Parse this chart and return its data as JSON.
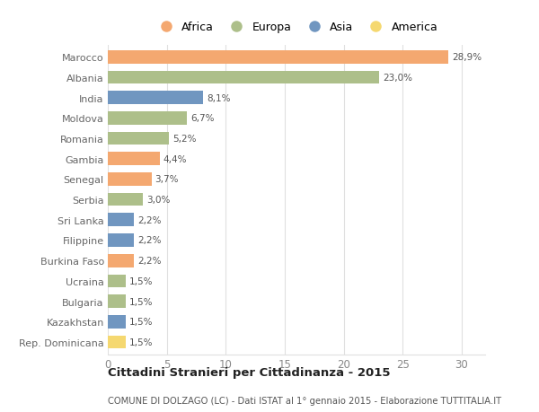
{
  "countries": [
    "Marocco",
    "Albania",
    "India",
    "Moldova",
    "Romania",
    "Gambia",
    "Senegal",
    "Serbia",
    "Sri Lanka",
    "Filippine",
    "Burkina Faso",
    "Ucraina",
    "Bulgaria",
    "Kazakhstan",
    "Rep. Dominicana"
  ],
  "values": [
    28.9,
    23.0,
    8.1,
    6.7,
    5.2,
    4.4,
    3.7,
    3.0,
    2.2,
    2.2,
    2.2,
    1.5,
    1.5,
    1.5,
    1.5
  ],
  "labels": [
    "28,9%",
    "23,0%",
    "8,1%",
    "6,7%",
    "5,2%",
    "4,4%",
    "3,7%",
    "3,0%",
    "2,2%",
    "2,2%",
    "2,2%",
    "1,5%",
    "1,5%",
    "1,5%",
    "1,5%"
  ],
  "continents": [
    "Africa",
    "Europa",
    "Asia",
    "Europa",
    "Europa",
    "Africa",
    "Africa",
    "Europa",
    "Asia",
    "Asia",
    "Africa",
    "Europa",
    "Europa",
    "Asia",
    "America"
  ],
  "colors": {
    "Africa": "#F4A870",
    "Europa": "#ADBF8A",
    "Asia": "#7096C0",
    "America": "#F5D870"
  },
  "legend_order": [
    "Africa",
    "Europa",
    "Asia",
    "America"
  ],
  "title": "Cittadini Stranieri per Cittadinanza - 2015",
  "subtitle": "COMUNE DI DOLZAGO (LC) - Dati ISTAT al 1° gennaio 2015 - Elaborazione TUTTITALIA.IT",
  "xlim": [
    0,
    32
  ],
  "xticks": [
    0,
    5,
    10,
    15,
    20,
    25,
    30
  ],
  "background_color": "#ffffff",
  "bar_height": 0.65,
  "grid_color": "#e0e0e0"
}
